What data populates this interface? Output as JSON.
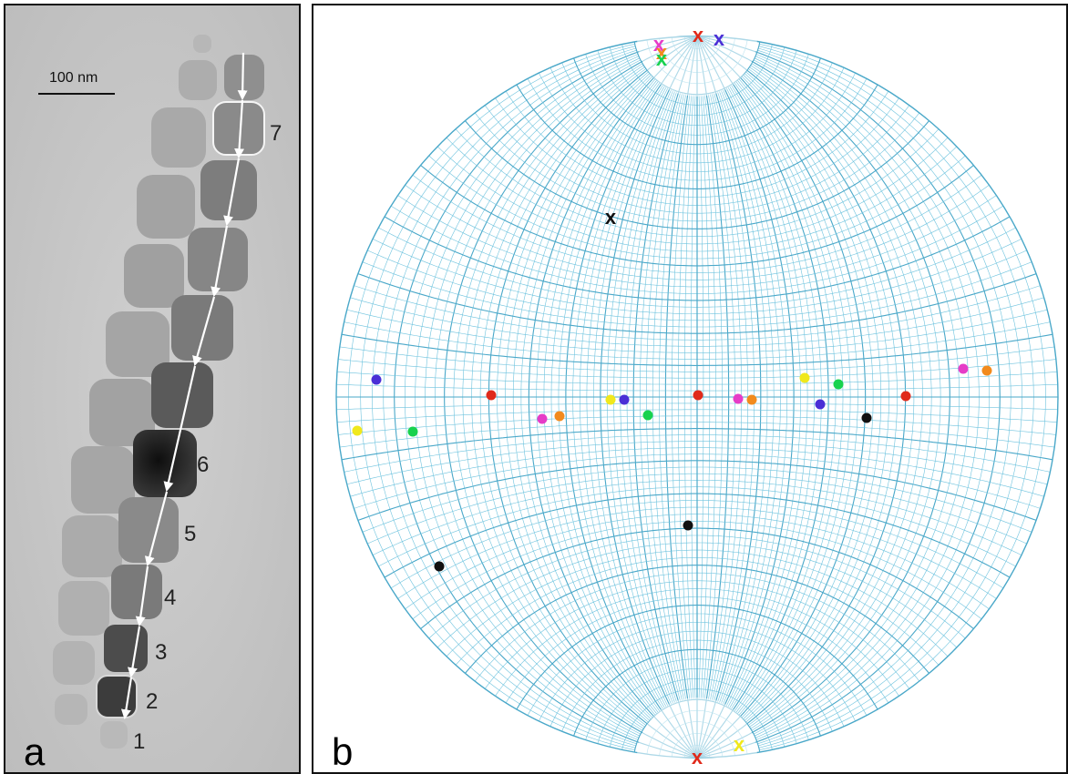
{
  "panel_a": {
    "letter": "a",
    "scale_bar_label": "100 nm",
    "crystal_labels": [
      "1",
      "2",
      "3",
      "4",
      "5",
      "6",
      "7"
    ]
  },
  "panel_b": {
    "letter": "b",
    "x_marker_glyph": "x",
    "colors": {
      "net_lines": "#6ec3de",
      "net_lines_major": "#4aa8c9",
      "red": "#e02a1b",
      "blue": "#4a2fd6",
      "magenta": "#e63cc7",
      "orange": "#f28a1c",
      "green": "#18d24e",
      "yellow": "#f0e81c",
      "black": "#111111"
    },
    "dot_colors": [
      "red",
      "blue",
      "magenta",
      "orange",
      "green",
      "yellow",
      "black"
    ]
  }
}
